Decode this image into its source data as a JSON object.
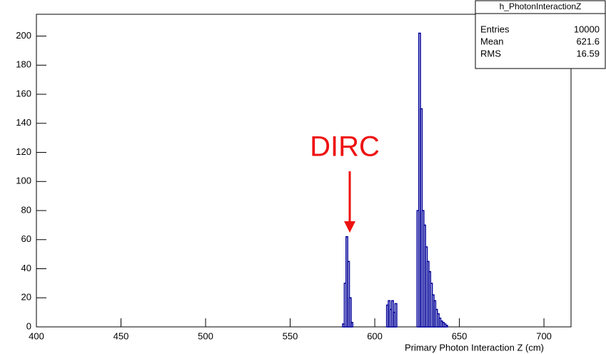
{
  "chart_data": {
    "type": "histogram",
    "x_label": "Primary Photon Interaction Z (cm)",
    "bins": [
      400,
      580,
      581,
      582,
      583,
      584,
      585,
      586,
      587,
      607,
      608,
      609,
      610,
      611,
      612,
      613,
      625,
      626,
      627,
      628,
      629,
      630,
      631,
      632,
      633,
      634,
      635,
      636,
      637,
      638,
      639,
      640,
      641,
      642,
      643,
      716
    ],
    "counts": [
      0,
      0,
      2,
      30,
      62,
      45,
      20,
      3,
      0,
      15,
      18,
      12,
      18,
      10,
      16,
      0,
      80,
      202,
      150,
      80,
      70,
      55,
      45,
      38,
      30,
      22,
      18,
      12,
      9,
      6,
      4,
      3,
      2,
      1,
      0
    ],
    "color": "#000099",
    "xlim": [
      400,
      716
    ],
    "ylim": [
      0,
      215
    ],
    "xticks": [
      400,
      450,
      500,
      550,
      600,
      650,
      700
    ],
    "yticks": [
      0,
      20,
      40,
      60,
      80,
      100,
      120,
      140,
      160,
      180,
      200
    ],
    "annotation": {
      "text": "DIRC",
      "color": "#ee1111"
    },
    "stats": {
      "title": "h_PhotonInteractionZ",
      "rows": [
        {
          "label": "Entries",
          "value": 10000
        },
        {
          "label": "Mean",
          "value": 621.6
        },
        {
          "label": "RMS",
          "value": 16.59
        }
      ]
    }
  }
}
